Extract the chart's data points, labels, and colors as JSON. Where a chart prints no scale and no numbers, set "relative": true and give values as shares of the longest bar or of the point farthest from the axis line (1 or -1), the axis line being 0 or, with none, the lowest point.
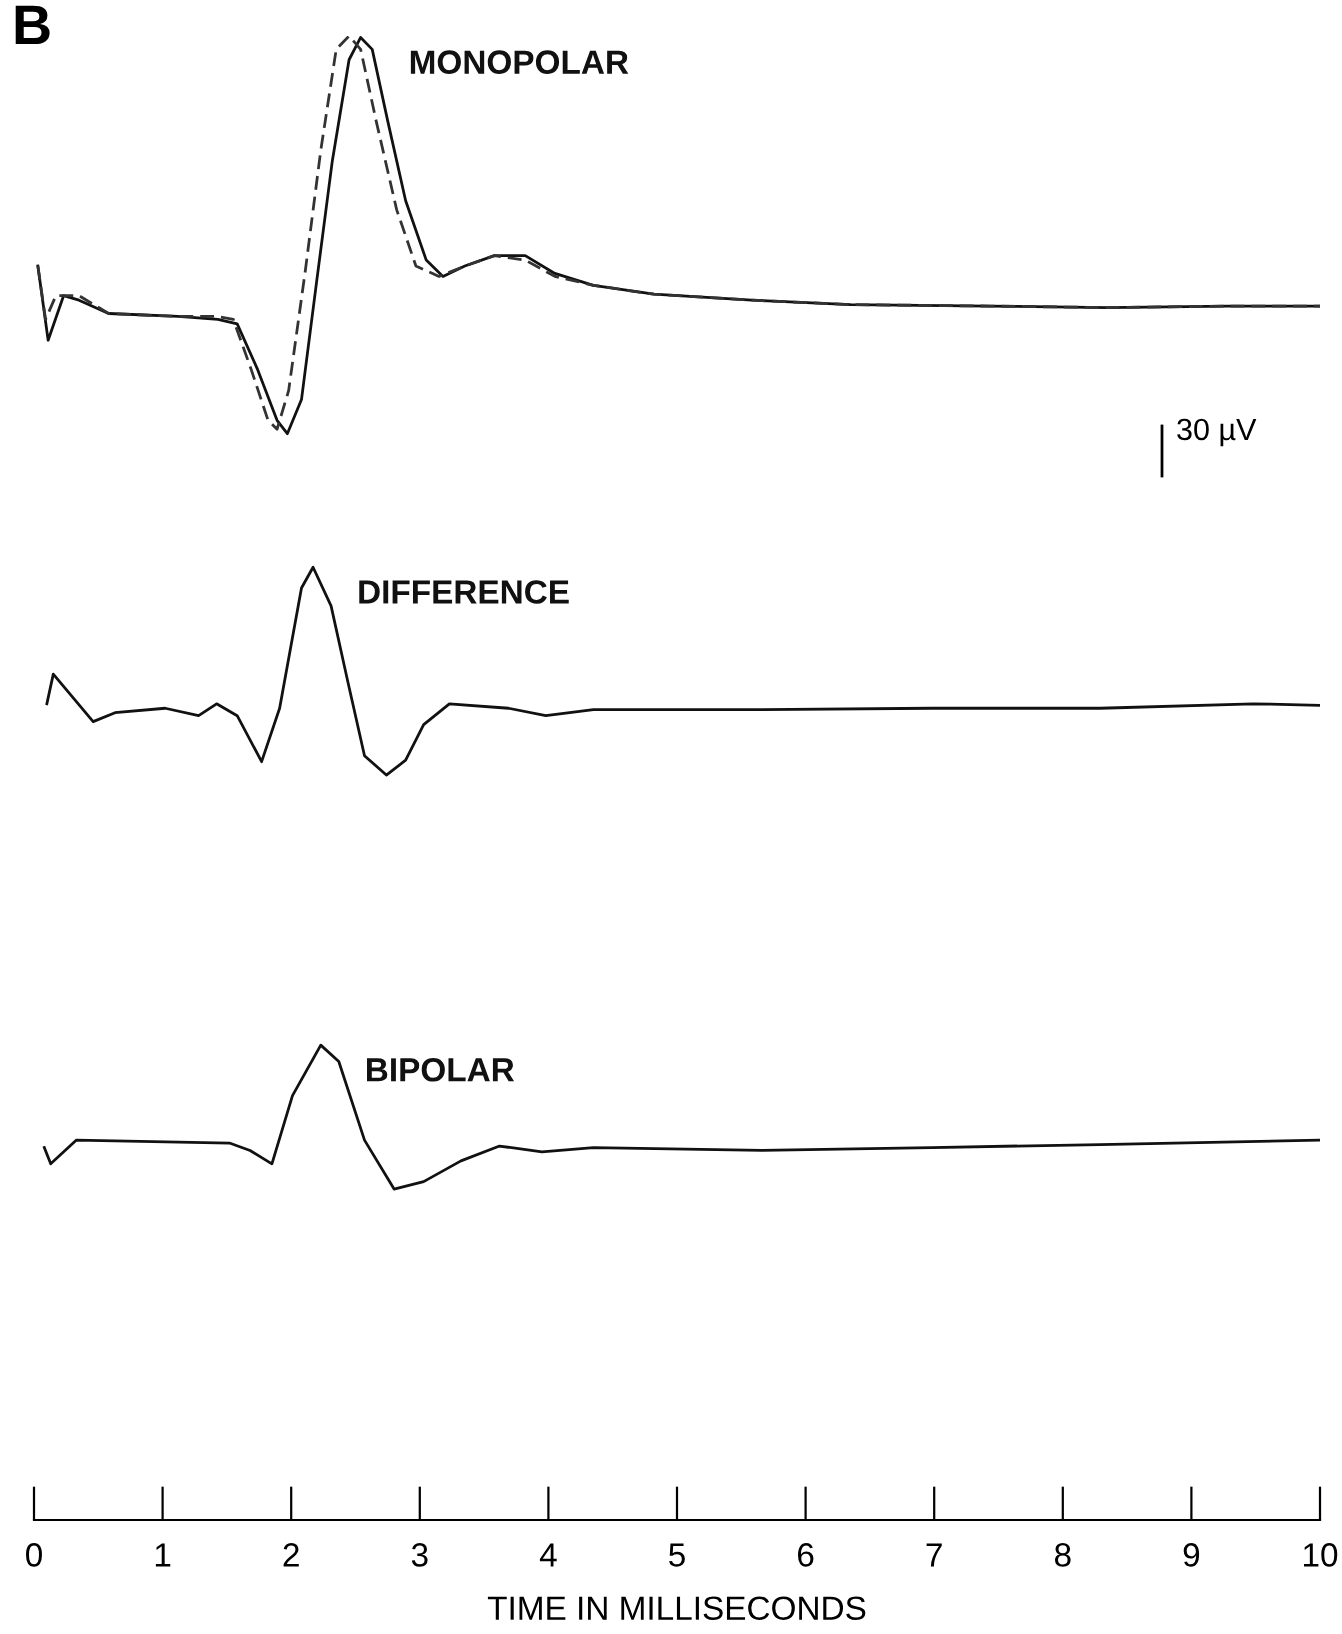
{
  "chart_data": {
    "type": "line",
    "relative": true,
    "xlim": [
      0,
      10
    ],
    "xticks": [
      0,
      1,
      2,
      3,
      4,
      5,
      6,
      7,
      8,
      9,
      10
    ],
    "xlabel": "TIME IN MILLISECONDS",
    "tick_labels": "x",
    "annotations": [
      "B",
      "30 µV"
    ],
    "series": [
      {
        "name": "MONOPOLAR",
        "color": "#111111",
        "line_style": "solid",
        "x": [
          0.03,
          0.11,
          0.23,
          0.35,
          0.58,
          1.12,
          1.43,
          1.58,
          1.74,
          1.89,
          1.97,
          2.08,
          2.2,
          2.32,
          2.45,
          2.54,
          2.63,
          2.75,
          2.89,
          3.05,
          3.18,
          3.35,
          3.58,
          3.82,
          4.05,
          4.35,
          4.82,
          5.58,
          6.35,
          7.43,
          8.35,
          9.28,
          10
        ],
        "values": [
          0.845,
          0.795,
          0.825,
          0.822,
          0.813,
          0.811,
          0.809,
          0.806,
          0.775,
          0.741,
          0.732,
          0.755,
          0.836,
          0.916,
          0.984,
          0.999,
          0.991,
          0.943,
          0.889,
          0.849,
          0.838,
          0.845,
          0.852,
          0.852,
          0.84,
          0.832,
          0.826,
          0.822,
          0.819,
          0.818,
          0.817,
          0.818,
          0.818
        ]
      },
      {
        "color": "#333333",
        "line_style": "dashed",
        "x": [
          0.03,
          0.09,
          0.17,
          0.35,
          0.58,
          1.12,
          1.43,
          1.55,
          1.69,
          1.82,
          1.89,
          1.98,
          2.11,
          2.23,
          2.35,
          2.45,
          2.54,
          2.66,
          2.82,
          2.97,
          3.15,
          3.35,
          3.58,
          3.82,
          4.05,
          4.35,
          4.82,
          5.58,
          6.35,
          7.43,
          8.35,
          9.28,
          10
        ],
        "values": [
          0.845,
          0.809,
          0.825,
          0.825,
          0.813,
          0.811,
          0.811,
          0.809,
          0.775,
          0.741,
          0.735,
          0.761,
          0.842,
          0.923,
          0.991,
          1.0,
          0.991,
          0.943,
          0.883,
          0.845,
          0.838,
          0.845,
          0.852,
          0.849,
          0.838,
          0.832,
          0.826,
          0.822,
          0.819,
          0.818,
          0.817,
          0.818,
          0.818
        ]
      },
      {
        "name": "DIFFERENCE",
        "color": "#111111",
        "line_style": "solid",
        "x": [
          0.1,
          0.15,
          0.46,
          0.63,
          1.02,
          1.28,
          1.42,
          1.58,
          1.77,
          1.91,
          2.08,
          2.17,
          2.31,
          2.44,
          2.57,
          2.74,
          2.89,
          3.03,
          3.23,
          3.69,
          3.98,
          4.35,
          5.66,
          6.98,
          8.29,
          9.48,
          10
        ],
        "values": [
          0.55,
          0.57,
          0.538,
          0.544,
          0.547,
          0.542,
          0.55,
          0.542,
          0.511,
          0.547,
          0.628,
          0.642,
          0.616,
          0.565,
          0.515,
          0.502,
          0.512,
          0.536,
          0.55,
          0.547,
          0.542,
          0.546,
          0.546,
          0.547,
          0.547,
          0.55,
          0.549
        ]
      },
      {
        "name": "BIPOLAR",
        "color": "#111111",
        "line_style": "solid",
        "x": [
          0.08,
          0.13,
          0.33,
          1.52,
          1.68,
          1.85,
          2.01,
          2.23,
          2.37,
          2.57,
          2.8,
          3.03,
          3.32,
          3.62,
          3.95,
          4.35,
          5.66,
          6.98,
          8.29,
          10
        ],
        "values": [
          0.251,
          0.24,
          0.256,
          0.254,
          0.249,
          0.24,
          0.286,
          0.32,
          0.309,
          0.256,
          0.223,
          0.228,
          0.242,
          0.252,
          0.248,
          0.251,
          0.249,
          0.251,
          0.253,
          0.256
        ]
      }
    ]
  }
}
